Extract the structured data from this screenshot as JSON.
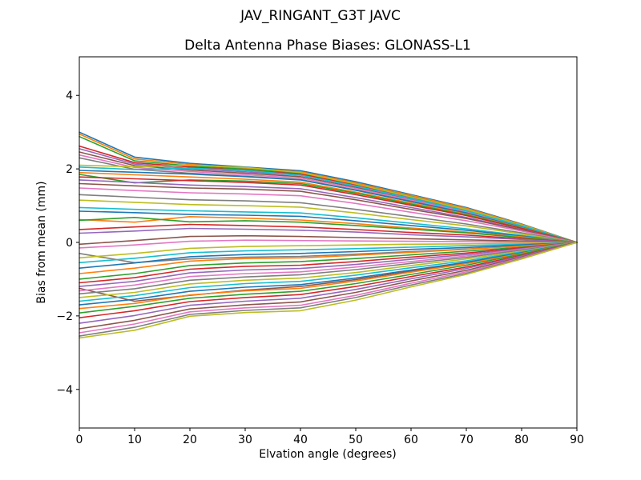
{
  "figure": {
    "background": "#ffffff",
    "axes_color": "#000000"
  },
  "chart_data": {
    "type": "line",
    "suptitle": "JAV_RINGANT_G3T JAVC",
    "title": "Delta Antenna Phase Biases: GLONASS-L1",
    "xlabel": "Elvation angle (degrees)",
    "ylabel": "Bias from mean (mm)",
    "xlim": [
      0,
      90
    ],
    "ylim": [
      -5.05,
      5.05
    ],
    "xticks": [
      0,
      10,
      20,
      30,
      40,
      50,
      60,
      70,
      80,
      90
    ],
    "yticks": [
      -4,
      -2,
      0,
      2,
      4
    ],
    "grid": false,
    "legend": "none",
    "palette": [
      "#1f77b4",
      "#ff7f0e",
      "#2ca02c",
      "#d62728",
      "#9467bd",
      "#8c564b",
      "#e377c2",
      "#7f7f7f",
      "#bcbd22",
      "#17becf"
    ],
    "x": [
      0,
      10,
      20,
      30,
      40,
      50,
      60,
      70,
      80,
      90
    ],
    "series": [
      [
        3.0,
        2.32,
        2.15,
        2.05,
        1.95,
        1.65,
        1.3,
        0.95,
        0.5,
        0
      ],
      [
        2.95,
        2.27,
        2.12,
        2.02,
        1.92,
        1.62,
        1.28,
        0.93,
        0.49,
        0
      ],
      [
        2.88,
        2.22,
        2.08,
        1.99,
        1.89,
        1.59,
        1.25,
        0.9,
        0.47,
        0
      ],
      [
        2.62,
        2.17,
        2.05,
        1.96,
        1.86,
        1.57,
        1.23,
        0.89,
        0.46,
        0
      ],
      [
        2.55,
        2.13,
        2.01,
        1.92,
        1.83,
        1.54,
        1.21,
        0.87,
        0.45,
        0
      ],
      [
        2.46,
        2.09,
        1.97,
        1.88,
        1.79,
        1.5,
        1.18,
        0.85,
        0.44,
        0
      ],
      [
        2.38,
        2.04,
        1.93,
        1.84,
        1.75,
        1.47,
        1.15,
        0.83,
        0.43,
        0
      ],
      [
        2.3,
        1.99,
        1.88,
        1.8,
        1.71,
        1.43,
        1.12,
        0.8,
        0.42,
        0
      ],
      [
        2.1,
        2.06,
        2.1,
        2.04,
        1.9,
        1.59,
        1.24,
        0.9,
        0.47,
        0
      ],
      [
        2.05,
        1.98,
        2.02,
        1.96,
        1.83,
        1.53,
        1.19,
        0.86,
        0.45,
        0
      ],
      [
        1.96,
        1.91,
        1.86,
        1.79,
        1.7,
        1.42,
        1.11,
        0.8,
        0.41,
        0
      ],
      [
        1.9,
        1.84,
        1.78,
        1.72,
        1.64,
        1.37,
        1.07,
        0.77,
        0.4,
        0
      ],
      [
        1.85,
        1.62,
        1.7,
        1.67,
        1.6,
        1.34,
        1.04,
        0.75,
        0.39,
        0
      ],
      [
        1.78,
        1.73,
        1.68,
        1.63,
        1.56,
        1.3,
        1.01,
        0.73,
        0.38,
        0
      ],
      [
        1.7,
        1.63,
        1.56,
        1.52,
        1.46,
        1.22,
        0.95,
        0.68,
        0.35,
        0
      ],
      [
        1.6,
        1.54,
        1.48,
        1.45,
        1.39,
        1.16,
        0.9,
        0.65,
        0.34,
        0
      ],
      [
        1.48,
        1.41,
        1.35,
        1.32,
        1.27,
        1.06,
        0.82,
        0.59,
        0.31,
        0
      ],
      [
        1.3,
        1.23,
        1.16,
        1.13,
        1.08,
        0.9,
        0.7,
        0.5,
        0.26,
        0
      ],
      [
        1.15,
        1.09,
        1.03,
        1.0,
        0.96,
        0.8,
        0.62,
        0.45,
        0.23,
        0
      ],
      [
        0.95,
        0.9,
        0.86,
        0.83,
        0.8,
        0.67,
        0.52,
        0.37,
        0.19,
        0
      ],
      [
        0.85,
        0.81,
        0.76,
        0.74,
        0.71,
        0.59,
        0.46,
        0.33,
        0.17,
        0
      ],
      [
        0.62,
        0.55,
        0.7,
        0.66,
        0.61,
        0.51,
        0.39,
        0.28,
        0.15,
        0
      ],
      [
        0.6,
        0.68,
        0.56,
        0.59,
        0.55,
        0.46,
        0.36,
        0.26,
        0.13,
        0
      ],
      [
        0.35,
        0.42,
        0.49,
        0.46,
        0.42,
        0.35,
        0.27,
        0.2,
        0.1,
        0
      ],
      [
        0.25,
        0.31,
        0.38,
        0.36,
        0.33,
        0.28,
        0.21,
        0.15,
        0.08,
        0
      ],
      [
        -0.05,
        0.05,
        0.16,
        0.18,
        0.16,
        0.13,
        0.1,
        0.07,
        0.04,
        0
      ],
      [
        -0.15,
        -0.07,
        0.03,
        0.06,
        0.05,
        0.04,
        0.03,
        0.02,
        0.01,
        0
      ],
      [
        -0.3,
        -0.55,
        -0.45,
        -0.4,
        -0.38,
        -0.32,
        -0.25,
        -0.18,
        -0.09,
        0
      ],
      [
        -0.42,
        -0.3,
        -0.16,
        -0.11,
        -0.09,
        -0.07,
        -0.05,
        -0.04,
        -0.02,
        0
      ],
      [
        -0.55,
        -0.43,
        -0.28,
        -0.23,
        -0.2,
        -0.17,
        -0.13,
        -0.09,
        -0.05,
        0
      ],
      [
        -0.7,
        -0.56,
        -0.39,
        -0.33,
        -0.3,
        -0.25,
        -0.19,
        -0.14,
        -0.07,
        0
      ],
      [
        -0.85,
        -0.7,
        -0.51,
        -0.44,
        -0.42,
        -0.35,
        -0.27,
        -0.19,
        -0.1,
        0
      ],
      [
        -1.0,
        -0.85,
        -0.63,
        -0.56,
        -0.52,
        -0.44,
        -0.34,
        -0.24,
        -0.13,
        0
      ],
      [
        -1.1,
        -0.96,
        -0.73,
        -0.65,
        -0.62,
        -0.52,
        -0.4,
        -0.29,
        -0.15,
        0
      ],
      [
        -1.2,
        -1.06,
        -0.83,
        -0.75,
        -0.71,
        -0.6,
        -0.46,
        -0.33,
        -0.17,
        0
      ],
      [
        -1.25,
        -1.6,
        -1.44,
        -1.3,
        -1.2,
        -1.01,
        -0.78,
        -0.56,
        -0.29,
        0
      ],
      [
        -1.32,
        -1.16,
        -0.93,
        -0.85,
        -0.8,
        -0.67,
        -0.52,
        -0.37,
        -0.19,
        0
      ],
      [
        -1.4,
        -1.26,
        -1.03,
        -0.94,
        -0.88,
        -0.74,
        -0.57,
        -0.41,
        -0.21,
        0
      ],
      [
        -1.5,
        -1.36,
        -1.13,
        -1.03,
        -0.97,
        -0.82,
        -0.63,
        -0.45,
        -0.24,
        0
      ],
      [
        -1.6,
        -1.45,
        -1.23,
        -1.12,
        -1.06,
        -0.89,
        -0.69,
        -0.5,
        -0.26,
        0
      ],
      [
        -1.7,
        -1.55,
        -1.33,
        -1.22,
        -1.15,
        -0.97,
        -0.75,
        -0.54,
        -0.28,
        0
      ],
      [
        -1.8,
        -1.66,
        -1.43,
        -1.32,
        -1.25,
        -1.05,
        -0.81,
        -0.58,
        -0.3,
        0
      ],
      [
        -1.92,
        -1.74,
        -1.52,
        -1.41,
        -1.33,
        -1.12,
        -0.87,
        -0.62,
        -0.32,
        0
      ],
      [
        -2.05,
        -1.86,
        -1.61,
        -1.5,
        -1.42,
        -1.2,
        -0.93,
        -0.67,
        -0.35,
        0
      ],
      [
        -2.2,
        -1.99,
        -1.71,
        -1.6,
        -1.52,
        -1.28,
        -0.99,
        -0.71,
        -0.37,
        0
      ],
      [
        -2.35,
        -2.12,
        -1.81,
        -1.7,
        -1.62,
        -1.36,
        -1.05,
        -0.76,
        -0.4,
        0
      ],
      [
        -2.46,
        -2.22,
        -1.89,
        -1.78,
        -1.71,
        -1.44,
        -1.11,
        -0.8,
        -0.42,
        0
      ],
      [
        -2.55,
        -2.31,
        -1.96,
        -1.85,
        -1.78,
        -1.5,
        -1.16,
        -0.84,
        -0.44,
        0
      ],
      [
        -2.6,
        -2.39,
        -2.01,
        -1.91,
        -1.86,
        -1.57,
        -1.21,
        -0.87,
        -0.45,
        0
      ]
    ]
  }
}
